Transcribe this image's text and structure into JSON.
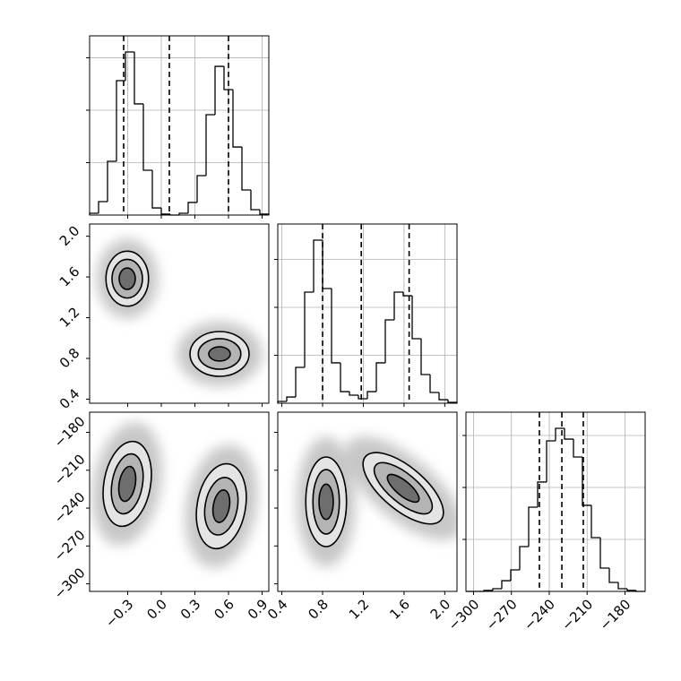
{
  "chart_data": {
    "type": "corner",
    "axes": [
      {
        "lim": [
          -0.64,
          0.96
        ],
        "ticks": [
          {
            "value": -0.3,
            "label": "−0.3"
          },
          {
            "value": 0,
            "label": "0.0"
          },
          0.3,
          0.6,
          0.9
        ]
      },
      {
        "lim": [
          0.36,
          2.12
        ],
        "ticks": [
          0.4,
          0.8,
          1.2,
          1.6,
          {
            "value": 2,
            "label": "2.0"
          }
        ]
      },
      {
        "lim": [
          -306,
          -164
        ],
        "ticks": [
          {
            "value": -300,
            "label": "−300"
          },
          {
            "value": -270,
            "label": "−270"
          },
          {
            "value": -240,
            "label": "−240"
          },
          {
            "value": -210,
            "label": "−210"
          },
          {
            "value": -180,
            "label": "−180"
          }
        ]
      }
    ],
    "grid": true,
    "histograms": [
      {
        "bins": [
          -0.64,
          -0.56,
          -0.48,
          -0.4,
          -0.32,
          -0.24,
          -0.16,
          -0.08,
          0,
          0.08,
          0.16,
          0.24,
          0.32,
          0.4,
          0.48,
          0.56,
          0.64,
          0.72,
          0.8,
          0.88,
          0.96
        ],
        "counts": [
          17,
          128,
          513,
          1282,
          1555,
          1060,
          427,
          68,
          9,
          0,
          17,
          120,
          376,
          957,
          1418,
          1196,
          649,
          239,
          51,
          9
        ],
        "ylim": [
          0,
          1709
        ],
        "yticks": [
          500,
          1000,
          1500
        ],
        "quantiles": [
          -0.336,
          0.072,
          0.6
        ]
      },
      {
        "bins": [
          0.36,
          0.448,
          0.536,
          0.624,
          0.712,
          0.8,
          0.888,
          0.976,
          1.064,
          1.152,
          1.24,
          1.328,
          1.416,
          1.504,
          1.592,
          1.68,
          1.768,
          1.856,
          1.944,
          2.032,
          2.12
        ],
        "counts": [
          19,
          65,
          374,
          1159,
          1701,
          1196,
          421,
          121,
          84,
          47,
          121,
          421,
          869,
          1159,
          1121,
          673,
          299,
          112,
          37,
          9
        ],
        "ylim": [
          0,
          1869
        ],
        "yticks": [
          500,
          1000,
          1500
        ],
        "quantiles": [
          0.8,
          1.18,
          1.65
        ]
      },
      {
        "bins": [
          -306,
          -298.9,
          -291.8,
          -284.7,
          -277.6,
          -270.5,
          -263.4,
          -256.3,
          -249.2,
          -242.1,
          -235,
          -227.9,
          -220.8,
          -213.7,
          -206.6,
          -199.5,
          -192.4,
          -185.3,
          -178.2,
          -171.1,
          -164
        ],
        "counts": [
          0,
          0,
          9,
          26,
          103,
          207,
          431,
          810,
          1052,
          1448,
          1569,
          1465,
          1293,
          828,
          517,
          224,
          86,
          26,
          9,
          0
        ],
        "ylim": [
          0,
          1724
        ],
        "yticks": [
          500,
          1000,
          1500
        ],
        "quantiles": [
          -247.8,
          -230,
          -213
        ]
      }
    ],
    "level_fills": [
      "#e4e4e4",
      "#b4b4b4",
      "#6e6e6e"
    ],
    "haze_color": "#9a9a9a",
    "pairs": [
      {
        "clusters": [
          {
            "center": [
              -0.304,
              1.583
            ],
            "levels": [
              [
                0.19,
                0.27
              ],
              [
                0.136,
                0.19
              ],
              [
                0.072,
                0.105
              ]
            ],
            "tilt": 0
          },
          {
            "center": [
              0.52,
              0.844
            ],
            "levels": [
              [
                0.264,
                0.22
              ],
              [
                0.19,
                0.15
              ],
              [
                0.096,
                0.07
              ]
            ],
            "tilt": 0
          }
        ]
      },
      {
        "clusters": [
          {
            "center": [
              -0.304,
              -220.8
            ],
            "levels": [
              [
                0.208,
                34
              ],
              [
                0.136,
                24
              ],
              [
                0.072,
                14
              ]
            ],
            "tilt": 10
          },
          {
            "center": [
              0.536,
              -238.5
            ],
            "levels": [
              [
                0.216,
                34
              ],
              [
                0.144,
                23
              ],
              [
                0.072,
                13
              ]
            ],
            "tilt": 10
          }
        ]
      },
      {
        "clusters": [
          {
            "center": [
              0.835,
              -235
            ],
            "levels": [
              [
                0.2,
                35.5
              ],
              [
                0.13,
                25.5
              ],
              [
                0.07,
                14
              ]
            ],
            "tilt": 0
          },
          {
            "center": [
              1.592,
              -224.3
            ],
            "levels": [
              [
                0.484,
                17
              ],
              [
                0.352,
                11.4
              ],
              [
                0.194,
                5.7
              ]
            ],
            "tilt": 40
          }
        ]
      }
    ]
  }
}
